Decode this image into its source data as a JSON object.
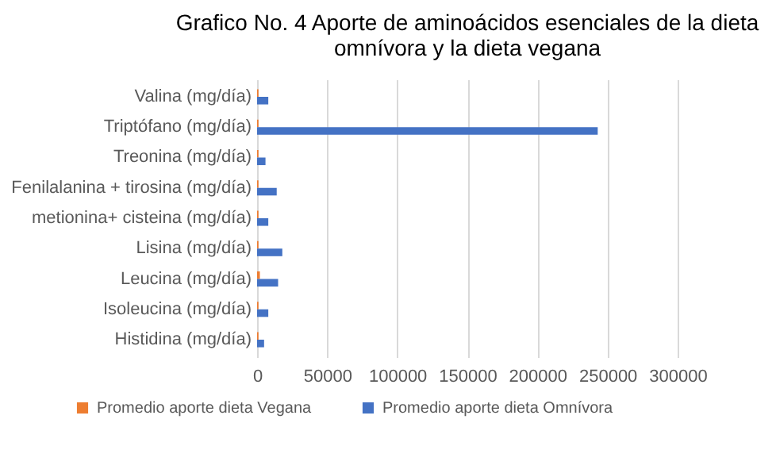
{
  "chart_data": {
    "type": "bar",
    "orientation": "horizontal",
    "title": "Grafico No. 4 Aporte de aminoácidos esenciales de la dieta omnívora y la dieta vegana",
    "categories": [
      "Valina (mg/día)",
      "Triptófano (mg/día)",
      "Treonina (mg/día)",
      "Fenilalanina + tirosina (mg/día)",
      "metionina+ cisteina (mg/día)",
      "Lisina (mg/día)",
      "Leucina (mg/día)",
      "Isoleucina (mg/día)",
      "Histidina (mg/día)"
    ],
    "series": [
      {
        "name": "Promedio aporte dieta Vegana",
        "color": "#ed7d31",
        "values": [
          1000,
          1000,
          1000,
          1000,
          1000,
          1000,
          2000,
          1000,
          1000
        ]
      },
      {
        "name": "Promedio aporte dieta Omnívora",
        "color": "#4472c4",
        "values": [
          8000,
          243000,
          6000,
          14000,
          8000,
          18000,
          15000,
          8000,
          5000
        ]
      }
    ],
    "xlim": [
      0,
      300000
    ],
    "xticks": [
      0,
      50000,
      100000,
      150000,
      200000,
      250000,
      300000
    ],
    "grid": "x",
    "legend": "bottom"
  }
}
